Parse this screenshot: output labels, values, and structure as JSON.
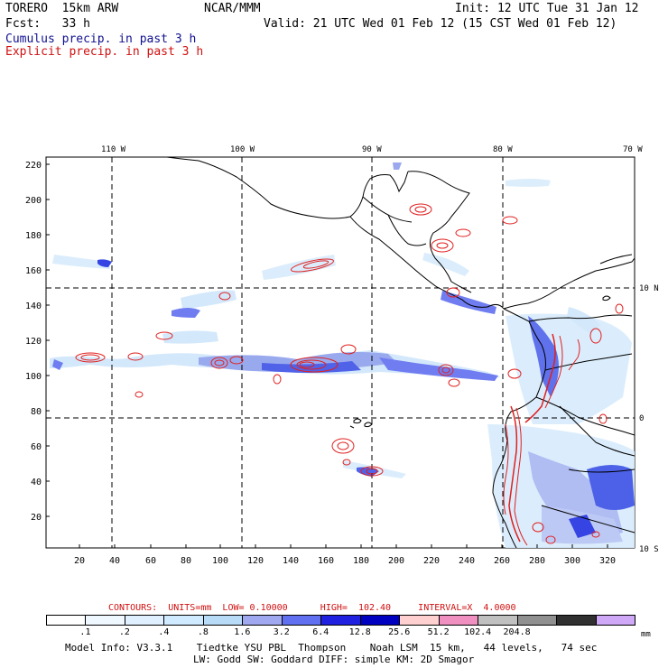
{
  "header": {
    "model": "TORERO  15km ARW",
    "center": "NCAR/MMM",
    "init": "Init: 12 UTC Tue 31 Jan 12",
    "fcst": "Fcst:   33 h",
    "valid": "Valid: 21 UTC Wed 01 Feb 12 (15 CST Wed 01 Feb 12)",
    "line_cumulus": "Cumulus precip. in past 3 h",
    "line_explicit": "Explicit precip. in past 3 h"
  },
  "axes": {
    "lon_labels": [
      "110 W",
      "100 W",
      "90 W",
      "80 W",
      "70 W"
    ],
    "lat_labels": [
      "10 N",
      "0",
      "10 S"
    ],
    "x_ticks": [
      "20",
      "40",
      "60",
      "80",
      "100",
      "120",
      "140",
      "160",
      "180",
      "200",
      "220",
      "240",
      "260",
      "280",
      "300",
      "320"
    ],
    "y_ticks": [
      "220",
      "200",
      "180",
      "160",
      "140",
      "120",
      "100",
      "80",
      "60",
      "40",
      "20"
    ]
  },
  "contours": {
    "text": "CONTOURS:  UNITS=mm  LOW= 0.10000      HIGH=  102.40     INTERVAL=X  4.0000"
  },
  "legend": {
    "unit": "mm",
    "labels": [
      ".1",
      ".2",
      ".4",
      ".8",
      "1.6",
      "3.2",
      "6.4",
      "12.8",
      "25.6",
      "51.2",
      "102.4",
      "204.8"
    ],
    "colors": [
      "#ffffff",
      "#f0f8ff",
      "#e0f0ff",
      "#d0eaff",
      "#b8dcf8",
      "#a0a8f0",
      "#6070f0",
      "#2020e0",
      "#0000c0",
      "#ffd0d0",
      "#f090c0",
      "#c0c0c0",
      "#909090",
      "#303030",
      "#d0a8f8"
    ]
  },
  "footer": {
    "line1": "Model Info: V3.3.1    Tiedtke YSU PBL  Thompson    Noah LSM  15 km,   44 levels,   74 sec",
    "line2": "LW: Godd SW: Goddard DIFF: simple KM: 2D Smagor"
  }
}
